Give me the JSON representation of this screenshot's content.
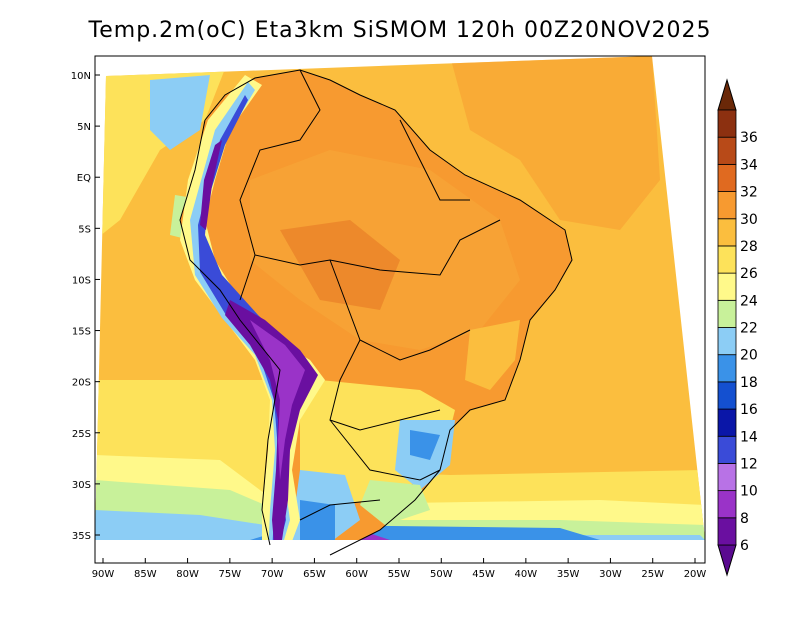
{
  "title": "Temp.2m(oC) Eta3km SiSMOM 120h 00Z20NOV2025",
  "map": {
    "variable": "2 m temperature",
    "units": "oC",
    "lon_range": [
      -90,
      -20
    ],
    "lat_range": [
      -38,
      12
    ],
    "lon_labels": [
      "90W",
      "85W",
      "80W",
      "75W",
      "70W",
      "65W",
      "60W",
      "55W",
      "50W",
      "45W",
      "40W",
      "35W",
      "30W",
      "25W",
      "20W"
    ],
    "lon_values": [
      -90,
      -85,
      -80,
      -75,
      -70,
      -65,
      -60,
      -55,
      -50,
      -45,
      -40,
      -35,
      -30,
      -25,
      -20
    ],
    "lat_labels": [
      "10N",
      "5N",
      "EQ",
      "5S",
      "10S",
      "15S",
      "20S",
      "25S",
      "30S",
      "35S"
    ],
    "lat_values": [
      10,
      5,
      0,
      -5,
      -10,
      -15,
      -20,
      -25,
      -30,
      -35
    ]
  },
  "colorbar": {
    "labels": [
      "6",
      "8",
      "10",
      "12",
      "14",
      "16",
      "18",
      "20",
      "22",
      "24",
      "26",
      "28",
      "30",
      "32",
      "34",
      "36"
    ],
    "colors": [
      "#6a0fa0",
      "#9a33c8",
      "#b872e6",
      "#3a4bd8",
      "#0a16a8",
      "#1450d0",
      "#3a92e8",
      "#8ccdf5",
      "#c8f19a",
      "#fff98a",
      "#fde25a",
      "#fbbe3e",
      "#f79a30",
      "#e06a20",
      "#b84a18",
      "#8c3010"
    ],
    "low_arrow_color": "#5a0a90",
    "high_arrow_color": "#6a2808"
  }
}
